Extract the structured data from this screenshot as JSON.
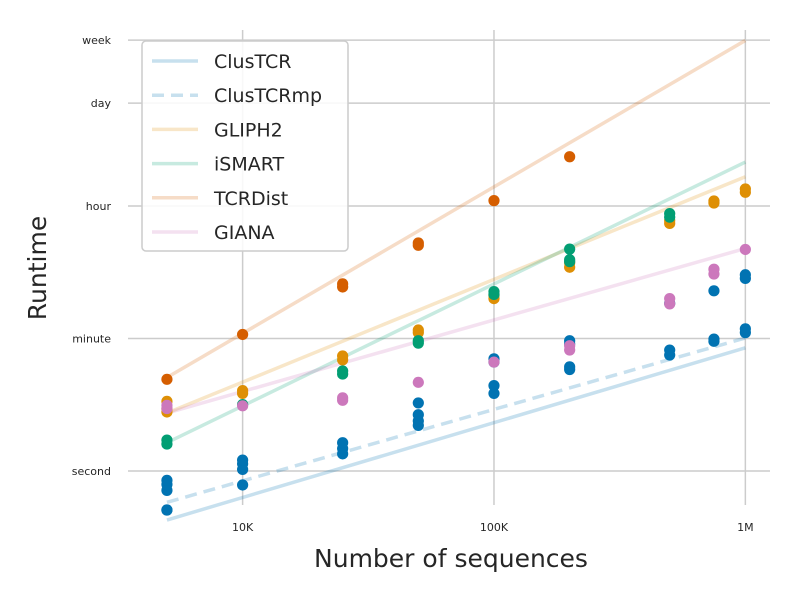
{
  "chart_data": {
    "type": "scatter",
    "xlabel": "Number of sequences",
    "ylabel": "Runtime",
    "x_scale": "log",
    "y_scale": "log",
    "xlim": [
      3500,
      1300000
    ],
    "ylim": [
      0.35,
      1200000
    ],
    "grid": true,
    "legend_position": "top-left",
    "x_ticks": [
      {
        "value": 10000,
        "label": "10K"
      },
      {
        "value": 100000,
        "label": "100K"
      },
      {
        "value": 1000000,
        "label": "1M"
      }
    ],
    "y_ticks": [
      {
        "value": 1,
        "label": "second"
      },
      {
        "value": 60,
        "label": "minute"
      },
      {
        "value": 3600,
        "label": "hour"
      },
      {
        "value": 86400,
        "label": "day"
      },
      {
        "value": 604800,
        "label": "week"
      }
    ],
    "series": [
      {
        "name": "ClusTCR",
        "color": "#0173b2",
        "line_style": "solid",
        "fit_line": [
          [
            5000,
            0.22
          ],
          [
            1000000,
            45
          ]
        ],
        "points": [
          [
            5000,
            0.3
          ],
          [
            5000,
            0.3
          ],
          [
            5000,
            0.55
          ],
          [
            5000,
            0.66
          ],
          [
            5000,
            0.75
          ],
          [
            10000,
            0.65
          ],
          [
            10000,
            1.05
          ],
          [
            10000,
            1.25
          ],
          [
            10000,
            1.4
          ],
          [
            25000,
            1.7
          ],
          [
            25000,
            2.0
          ],
          [
            25000,
            2.4
          ],
          [
            50000,
            4.1
          ],
          [
            50000,
            4.7
          ],
          [
            50000,
            5.7
          ],
          [
            50000,
            8.2
          ],
          [
            100000,
            29
          ],
          [
            100000,
            32
          ],
          [
            200000,
            51
          ],
          [
            200000,
            56
          ],
          [
            500000,
            178
          ],
          [
            750000,
            262
          ],
          [
            1000000,
            384
          ],
          [
            1000000,
            430
          ]
        ]
      },
      {
        "name": "ClusTCRmp",
        "color": "#0173b2",
        "line_style": "dashed",
        "fit_line": [
          [
            5000,
            0.38
          ],
          [
            1000000,
            61
          ]
        ],
        "points": [
          [
            100000,
            11
          ],
          [
            100000,
            14
          ],
          [
            200000,
            23
          ],
          [
            200000,
            25
          ],
          [
            500000,
            36
          ],
          [
            500000,
            42
          ],
          [
            750000,
            55
          ],
          [
            750000,
            59
          ],
          [
            1000000,
            72
          ],
          [
            1000000,
            81
          ]
        ]
      },
      {
        "name": "GLIPH2",
        "color": "#de8f05",
        "line_style": "solid",
        "fit_line": [
          [
            5000,
            6.0
          ],
          [
            1000000,
            8900
          ]
        ],
        "points": [
          [
            5000,
            6.2
          ],
          [
            5000,
            6.8
          ],
          [
            5000,
            8.6
          ],
          [
            10000,
            11
          ],
          [
            10000,
            12
          ],
          [
            25000,
            31
          ],
          [
            25000,
            35
          ],
          [
            50000,
            72
          ],
          [
            50000,
            78
          ],
          [
            100000,
            206
          ],
          [
            100000,
            226
          ],
          [
            200000,
            543
          ],
          [
            200000,
            622
          ],
          [
            500000,
            2100
          ],
          [
            500000,
            2300
          ],
          [
            750000,
            3950
          ],
          [
            750000,
            4200
          ],
          [
            1000000,
            5500
          ],
          [
            1000000,
            6100
          ]
        ]
      },
      {
        "name": "iSMART",
        "color": "#029e73",
        "line_style": "solid",
        "fit_line": [
          [
            5000,
            2.4
          ],
          [
            1000000,
            14000
          ]
        ],
        "points": [
          [
            5000,
            2.3
          ],
          [
            5000,
            2.6
          ],
          [
            10000,
            7.8
          ],
          [
            25000,
            20
          ],
          [
            25000,
            22
          ],
          [
            50000,
            52
          ],
          [
            50000,
            56
          ],
          [
            100000,
            234
          ],
          [
            100000,
            256
          ],
          [
            200000,
            645
          ],
          [
            200000,
            684
          ],
          [
            200000,
            950
          ],
          [
            500000,
            2550
          ],
          [
            500000,
            2850
          ]
        ]
      },
      {
        "name": "TCRDist",
        "color": "#d55e00",
        "line_style": "solid",
        "fit_line": [
          [
            5000,
            18
          ],
          [
            1000000,
            600000
          ]
        ],
        "points": [
          [
            5000,
            17
          ],
          [
            10000,
            68
          ],
          [
            25000,
            295
          ],
          [
            25000,
            325
          ],
          [
            50000,
            1070
          ],
          [
            50000,
            1150
          ],
          [
            100000,
            4250
          ],
          [
            200000,
            16500
          ]
        ]
      },
      {
        "name": "GIANA",
        "color": "#cc78bc",
        "line_style": "solid",
        "fit_line": [
          [
            5000,
            6.0
          ],
          [
            1000000,
            970
          ]
        ],
        "points": [
          [
            5000,
            6.9
          ],
          [
            5000,
            7.6
          ],
          [
            10000,
            7.5
          ],
          [
            25000,
            8.9
          ],
          [
            25000,
            9.6
          ],
          [
            50000,
            15.5
          ],
          [
            100000,
            29
          ],
          [
            200000,
            42
          ],
          [
            200000,
            48
          ],
          [
            500000,
            175
          ],
          [
            500000,
            206
          ],
          [
            750000,
            440
          ],
          [
            750000,
            510
          ],
          [
            1000000,
            940
          ]
        ]
      }
    ]
  }
}
